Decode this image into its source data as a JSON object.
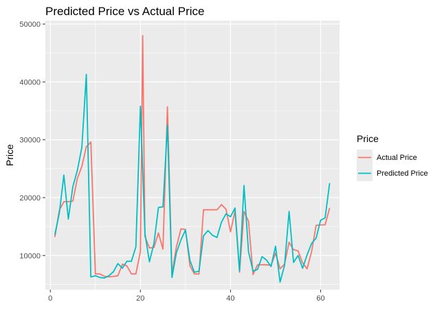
{
  "chart_data": {
    "type": "line",
    "title": "Predicted Price vs Actual Price",
    "xlabel": "",
    "ylabel": "Price",
    "xlim": [
      -1.1,
      64.2
    ],
    "ylim": [
      4100,
      50600
    ],
    "xticks": [
      0,
      20,
      40,
      60
    ],
    "yticks": [
      10000,
      20000,
      30000,
      40000,
      50000
    ],
    "grid": true,
    "legend": {
      "title": "Price",
      "position": "right"
    },
    "series": [
      {
        "name": "Actual Price",
        "color": "#f8766d",
        "points": [
          [
            1,
            13200
          ],
          [
            2,
            17800
          ],
          [
            3,
            19300
          ],
          [
            4,
            19300
          ],
          [
            5,
            19400
          ],
          [
            6,
            23300
          ],
          [
            7,
            25400
          ],
          [
            8,
            28800
          ],
          [
            9,
            29600
          ],
          [
            10,
            6800
          ],
          [
            11,
            6800
          ],
          [
            12,
            6400
          ],
          [
            13,
            6300
          ],
          [
            14,
            6400
          ],
          [
            15,
            6500
          ],
          [
            16,
            8500
          ],
          [
            17,
            8200
          ],
          [
            18,
            6800
          ],
          [
            19,
            6800
          ],
          [
            20,
            10700
          ],
          [
            20.5,
            48000
          ],
          [
            21,
            13300
          ],
          [
            22,
            11300
          ],
          [
            23,
            11400
          ],
          [
            24,
            13900
          ],
          [
            25,
            11100
          ],
          [
            26,
            35700
          ],
          [
            27,
            6800
          ],
          [
            28,
            11500
          ],
          [
            29,
            14600
          ],
          [
            30,
            14500
          ],
          [
            31,
            8200
          ],
          [
            32,
            6800
          ],
          [
            33,
            6800
          ],
          [
            34,
            17900
          ],
          [
            35,
            17900
          ],
          [
            36,
            17900
          ],
          [
            37,
            17900
          ],
          [
            38,
            18800
          ],
          [
            39,
            18000
          ],
          [
            40,
            14100
          ],
          [
            41,
            17700
          ],
          [
            42,
            7100
          ],
          [
            43,
            17600
          ],
          [
            44,
            15900
          ],
          [
            45,
            6700
          ],
          [
            46,
            8400
          ],
          [
            47,
            8400
          ],
          [
            48,
            8400
          ],
          [
            49,
            8300
          ],
          [
            50,
            10400
          ],
          [
            51,
            7700
          ],
          [
            52,
            8500
          ],
          [
            53,
            12300
          ],
          [
            54,
            11000
          ],
          [
            55,
            10800
          ],
          [
            56,
            8700
          ],
          [
            57,
            7700
          ],
          [
            58,
            10700
          ],
          [
            59,
            15200
          ],
          [
            60,
            15300
          ],
          [
            61,
            15300
          ],
          [
            62,
            18200
          ]
        ]
      },
      {
        "name": "Predicted Price",
        "color": "#00bfc4",
        "points": [
          [
            1,
            13600
          ],
          [
            2,
            17300
          ],
          [
            3,
            23900
          ],
          [
            4,
            16300
          ],
          [
            5,
            21900
          ],
          [
            6,
            24700
          ],
          [
            7,
            28700
          ],
          [
            8,
            41300
          ],
          [
            9,
            6300
          ],
          [
            10,
            6500
          ],
          [
            11,
            6200
          ],
          [
            12,
            6100
          ],
          [
            13,
            6500
          ],
          [
            14,
            7200
          ],
          [
            15,
            8600
          ],
          [
            16,
            7800
          ],
          [
            17,
            9000
          ],
          [
            18,
            9000
          ],
          [
            19,
            11500
          ],
          [
            20,
            35800
          ],
          [
            21,
            13800
          ],
          [
            22,
            8900
          ],
          [
            23,
            12100
          ],
          [
            24,
            18300
          ],
          [
            25,
            18400
          ],
          [
            26,
            32500
          ],
          [
            27,
            6200
          ],
          [
            28,
            10500
          ],
          [
            29,
            12700
          ],
          [
            30,
            14400
          ],
          [
            31,
            9100
          ],
          [
            32,
            7100
          ],
          [
            33,
            7300
          ],
          [
            34,
            13400
          ],
          [
            35,
            14300
          ],
          [
            36,
            13500
          ],
          [
            37,
            13100
          ],
          [
            38,
            15800
          ],
          [
            39,
            17200
          ],
          [
            40,
            16700
          ],
          [
            41,
            18200
          ],
          [
            42,
            7300
          ],
          [
            43,
            22100
          ],
          [
            44,
            10600
          ],
          [
            45,
            7300
          ],
          [
            46,
            7600
          ],
          [
            47,
            9800
          ],
          [
            48,
            9200
          ],
          [
            49,
            8100
          ],
          [
            50,
            11600
          ],
          [
            51,
            5400
          ],
          [
            52,
            8300
          ],
          [
            53,
            17600
          ],
          [
            54,
            8800
          ],
          [
            55,
            10000
          ],
          [
            56,
            7800
          ],
          [
            57,
            10100
          ],
          [
            58,
            12100
          ],
          [
            59,
            13000
          ],
          [
            60,
            16100
          ],
          [
            61,
            16500
          ],
          [
            62,
            22500
          ]
        ]
      }
    ]
  }
}
